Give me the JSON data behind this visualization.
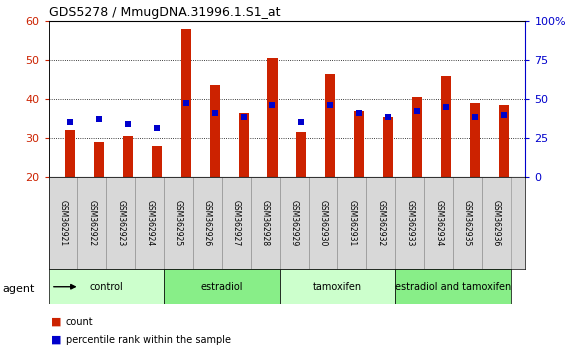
{
  "title": "GDS5278 / MmugDNA.31996.1.S1_at",
  "samples": [
    "GSM362921",
    "GSM362922",
    "GSM362923",
    "GSM362924",
    "GSM362925",
    "GSM362926",
    "GSM362927",
    "GSM362928",
    "GSM362929",
    "GSM362930",
    "GSM362931",
    "GSM362932",
    "GSM362933",
    "GSM362934",
    "GSM362935",
    "GSM362936"
  ],
  "counts": [
    32,
    29,
    30.5,
    28,
    58,
    43.5,
    36.5,
    50.5,
    31.5,
    46.5,
    37,
    35.5,
    40.5,
    46,
    39,
    38.5
  ],
  "perc_left_axis": [
    34,
    35,
    33.5,
    32.5,
    39,
    36.5,
    35.5,
    38.5,
    34,
    38.5,
    36.5,
    35.5,
    37,
    38,
    35.5,
    36
  ],
  "groups": [
    {
      "label": "control",
      "start": 0,
      "end": 4,
      "color": "#ccffcc"
    },
    {
      "label": "estradiol",
      "start": 4,
      "end": 8,
      "color": "#88ee88"
    },
    {
      "label": "tamoxifen",
      "start": 8,
      "end": 12,
      "color": "#ccffcc"
    },
    {
      "label": "estradiol and tamoxifen",
      "start": 12,
      "end": 16,
      "color": "#88ee88"
    }
  ],
  "bar_color": "#cc2200",
  "dot_color": "#0000cc",
  "ylim_left": [
    20,
    60
  ],
  "ylim_right": [
    0,
    100
  ],
  "yticks_left": [
    20,
    30,
    40,
    50,
    60
  ],
  "yticks_right": [
    0,
    25,
    50,
    75,
    100
  ],
  "ytick_labels_right": [
    "0",
    "25",
    "50",
    "75",
    "100%"
  ],
  "ylabel_left_color": "#cc2200",
  "ylabel_right_color": "#0000cc",
  "background_color": "#ffffff",
  "plot_bg_color": "#ffffff",
  "agent_label": "agent",
  "legend_count": "count",
  "legend_percentile": "percentile rank within the sample",
  "bar_width": 0.35
}
